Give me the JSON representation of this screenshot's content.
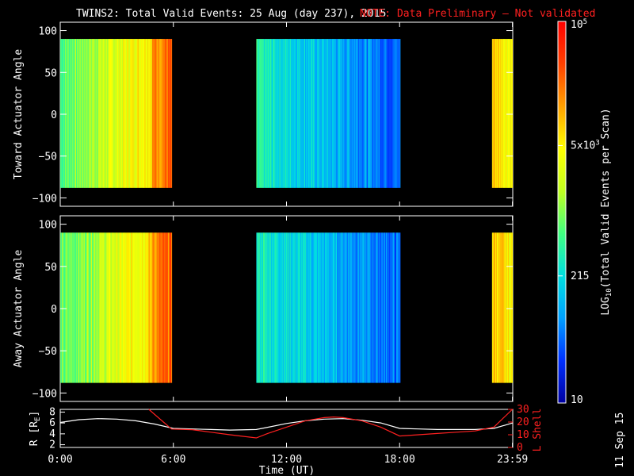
{
  "title": {
    "main": "TWINS2: Total Valid Events: 25 Aug (day 237), 2015",
    "note": "NOTE: Data Preliminary — Not validated"
  },
  "date_stamp": "11 Sep 15",
  "chart_data": [
    {
      "type": "heatmap",
      "name": "toward-panel",
      "ylabel": "Toward Actuator Angle",
      "ylim": [
        -110,
        110
      ],
      "yticks": [
        100,
        50,
        0,
        -50,
        -100
      ],
      "ytick_labels": [
        "100",
        "50",
        "0",
        "−50",
        "−100"
      ],
      "data_y_range": [
        -88,
        90
      ],
      "xlim": [
        0,
        24
      ],
      "data_blocks": [
        {
          "start": 0.0,
          "end": 5.9,
          "level": "high (green-yellow to orange)"
        },
        {
          "start": 10.4,
          "end": 18.0,
          "level": "low (cyan to blue)"
        },
        {
          "start": 22.9,
          "end": 23.98,
          "level": "high (yellow-orange)"
        }
      ]
    },
    {
      "type": "heatmap",
      "name": "away-panel",
      "ylabel": "Away Actuator Angle",
      "ylim": [
        -110,
        110
      ],
      "yticks": [
        100,
        50,
        0,
        -50,
        -100
      ],
      "ytick_labels": [
        "100",
        "50",
        "0",
        "−50",
        "−100"
      ],
      "data_y_range": [
        -88,
        90
      ],
      "xlim": [
        0,
        24
      ],
      "data_blocks": [
        {
          "start": 0.0,
          "end": 5.9,
          "level": "high (green-yellow to orange)"
        },
        {
          "start": 10.4,
          "end": 18.0,
          "level": "low (cyan to blue)"
        },
        {
          "start": 22.9,
          "end": 23.98,
          "level": "high (yellow-orange)"
        }
      ]
    },
    {
      "type": "line",
      "name": "orbit-panel",
      "xlabel": "Time (UT)",
      "x_ticks": [
        0,
        6,
        12,
        18,
        23.983
      ],
      "x_tick_labels": [
        "0:00",
        "6:00",
        "12:00",
        "18:00",
        "23:59"
      ],
      "left_axis": {
        "label_main": "R [R",
        "label_sub": "E",
        "label_end": "]",
        "ylim": [
          1.5,
          8.5
        ],
        "ticks": [
          2,
          4,
          6,
          8
        ],
        "tick_labels": [
          "2",
          "4",
          "6",
          "8"
        ]
      },
      "right_axis": {
        "label": "L Shell",
        "ylim": [
          0,
          30
        ],
        "ticks": [
          0,
          10,
          20,
          30
        ],
        "tick_labels": [
          "0",
          "10",
          "20",
          "30"
        ]
      },
      "series": [
        {
          "axis": "left",
          "color": "#ffffff",
          "x": [
            0,
            1,
            2,
            3,
            4,
            5,
            6,
            7,
            8,
            9,
            10.4,
            11,
            12,
            13,
            14,
            15,
            16,
            17,
            18,
            19,
            20,
            21,
            22,
            23,
            24
          ],
          "y": [
            6.1,
            6.6,
            6.8,
            6.7,
            6.4,
            5.8,
            5.0,
            4.9,
            4.8,
            4.7,
            4.8,
            5.2,
            5.9,
            6.4,
            6.7,
            6.8,
            6.5,
            6.0,
            5.0,
            4.9,
            4.8,
            4.8,
            4.8,
            5.0,
            6.0
          ]
        },
        {
          "axis": "right",
          "color": "#ff2020",
          "x": [
            4.7,
            5.9,
            7,
            8,
            9,
            10.4,
            11,
            12,
            13,
            14,
            14.5,
            15,
            16,
            17,
            18,
            19,
            20,
            21,
            22,
            23,
            23.98
          ],
          "y": [
            30,
            14.5,
            14.0,
            12.0,
            10.0,
            7.5,
            11.0,
            16.0,
            21.0,
            23.5,
            24.0,
            23.5,
            21.0,
            16.0,
            9.0,
            10.0,
            11.0,
            12.0,
            13.0,
            16.0,
            30
          ]
        }
      ]
    }
  ],
  "colorbar": {
    "label_pre": "LOG",
    "label_sub": "10",
    "label_post": "(Total Valid Events per Scan)",
    "range": [
      10,
      100000
    ],
    "tick_labels": [
      {
        "value": 100000,
        "base": "10",
        "exp": "5"
      },
      {
        "value": 5000,
        "base": "5x10",
        "exp": "3"
      },
      {
        "value": 215,
        "base": "215",
        "exp": ""
      },
      {
        "value": 10,
        "base": "10",
        "exp": ""
      }
    ],
    "colors": [
      "#0000a0",
      "#0030ff",
      "#00a0ff",
      "#00e0e0",
      "#40ff80",
      "#c0ff20",
      "#ffff00",
      "#ffa000",
      "#ff4000",
      "#ff0000"
    ]
  }
}
